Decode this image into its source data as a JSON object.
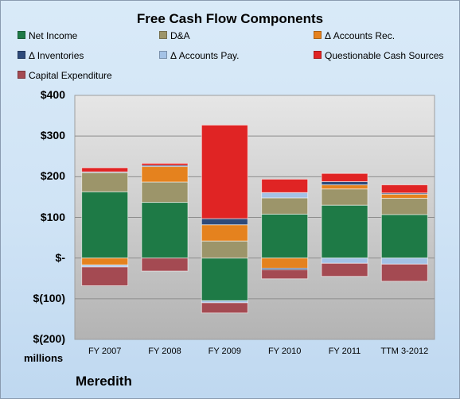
{
  "chart_data": {
    "type": "bar",
    "stacked": true,
    "title": "Free Cash Flow Components",
    "categories": [
      "FY 2007",
      "FY 2008",
      "FY 2009",
      "FY 2010",
      "FY 2011",
      "TTM 3-2012"
    ],
    "ylim": [
      -200,
      400
    ],
    "yticks": [
      400,
      300,
      200,
      100,
      0,
      -100,
      -200
    ],
    "ytick_labels": [
      "$400",
      "$300",
      "$200",
      "$100",
      "$-",
      "$(100)",
      "$(200)"
    ],
    "unit_label": "millions",
    "legend_position": "top",
    "grid": true,
    "series": [
      {
        "name": "Net Income",
        "color": "#1e7a46",
        "values": [
          163,
          137,
          -105,
          108,
          130,
          107
        ]
      },
      {
        "name": "D&A",
        "color": "#9c956a",
        "values": [
          47,
          50,
          42,
          40,
          40,
          40
        ]
      },
      {
        "name": "Δ Accounts Rec.",
        "color": "#e5821e",
        "values": [
          -17,
          38,
          40,
          -25,
          10,
          10
        ]
      },
      {
        "name": "Δ Inventories",
        "color": "#2e4a7a",
        "values": [
          2,
          3,
          15,
          -4,
          8,
          3
        ]
      },
      {
        "name": "Δ Accounts Pay.",
        "color": "#a4c2e6",
        "values": [
          -5,
          0,
          -5,
          13,
          -13,
          -15
        ]
      },
      {
        "name": "Questionable Cash Sources",
        "color": "#e02424",
        "values": [
          10,
          5,
          230,
          33,
          20,
          20
        ]
      },
      {
        "name": "Capital Expenditure",
        "color": "#a44a52",
        "values": [
          -46,
          -32,
          -25,
          -22,
          -32,
          -42
        ]
      }
    ]
  },
  "footer": {
    "company": "Meredith"
  }
}
